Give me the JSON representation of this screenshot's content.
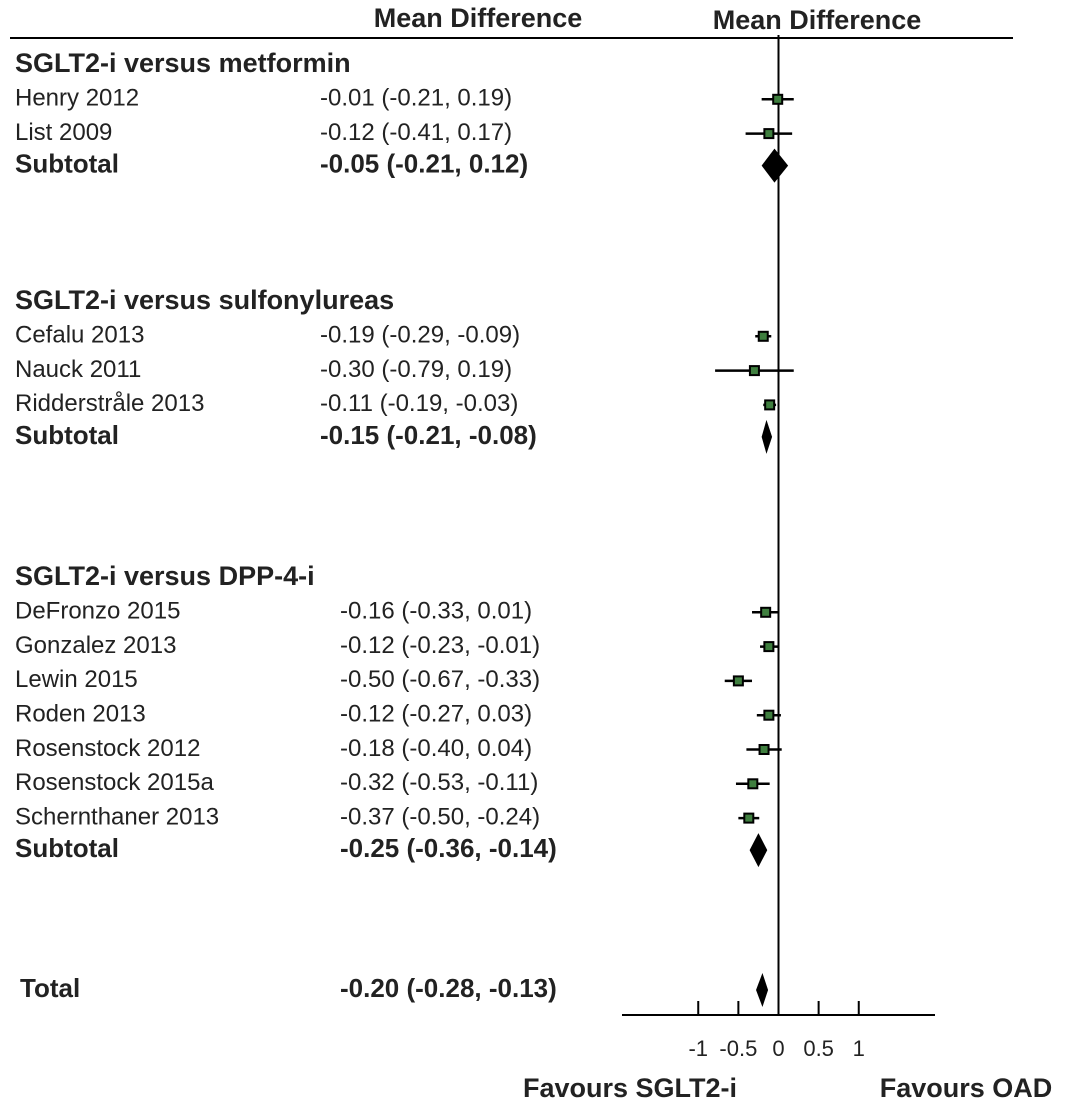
{
  "chart_data": {
    "type": "forest",
    "column_headers": [
      "Mean Difference",
      "Mean Difference"
    ],
    "groups": [
      {
        "title": "SGLT2-i versus metformin",
        "studies": [
          {
            "name": "Henry 2012",
            "mean": -0.01,
            "lower": -0.21,
            "upper": 0.19,
            "label": "-0.01 (-0.21, 0.19)"
          },
          {
            "name": "List 2009",
            "mean": -0.12,
            "lower": -0.41,
            "upper": 0.17,
            "label": "-0.12 (-0.41, 0.17)"
          }
        ],
        "subtotal": {
          "name": "Subtotal",
          "mean": -0.05,
          "lower": -0.21,
          "upper": 0.12,
          "label": "-0.05 (-0.21, 0.12)"
        }
      },
      {
        "title": "SGLT2-i versus sulfonylureas",
        "studies": [
          {
            "name": "Cefalu 2013",
            "mean": -0.19,
            "lower": -0.29,
            "upper": -0.09,
            "label": "-0.19 (-0.29, -0.09)"
          },
          {
            "name": "Nauck 2011",
            "mean": -0.3,
            "lower": -0.79,
            "upper": 0.19,
            "label": "-0.30 (-0.79, 0.19)"
          },
          {
            "name": "Ridderstråle 2013",
            "mean": -0.11,
            "lower": -0.19,
            "upper": -0.03,
            "label": "-0.11 (-0.19, -0.03)"
          }
        ],
        "subtotal": {
          "name": "Subtotal",
          "mean": -0.15,
          "lower": -0.21,
          "upper": -0.08,
          "label": "-0.15 (-0.21, -0.08)"
        }
      },
      {
        "title": "SGLT2-i versus DPP-4-i",
        "studies": [
          {
            "name": "DeFronzo 2015",
            "mean": -0.16,
            "lower": -0.33,
            "upper": 0.01,
            "label": "-0.16 (-0.33, 0.01)"
          },
          {
            "name": "Gonzalez 2013",
            "mean": -0.12,
            "lower": -0.23,
            "upper": -0.01,
            "label": "-0.12 (-0.23, -0.01)"
          },
          {
            "name": "Lewin 2015",
            "mean": -0.5,
            "lower": -0.67,
            "upper": -0.33,
            "label": "-0.50 (-0.67, -0.33)"
          },
          {
            "name": "Roden 2013",
            "mean": -0.12,
            "lower": -0.27,
            "upper": 0.03,
            "label": "-0.12 (-0.27, 0.03)"
          },
          {
            "name": "Rosenstock 2012",
            "mean": -0.18,
            "lower": -0.4,
            "upper": 0.04,
            "label": "-0.18 (-0.40, 0.04)"
          },
          {
            "name": "Rosenstock 2015a",
            "mean": -0.32,
            "lower": -0.53,
            "upper": -0.11,
            "label": "-0.32 (-0.53, -0.11)"
          },
          {
            "name": "Schernthaner 2013",
            "mean": -0.37,
            "lower": -0.5,
            "upper": -0.24,
            "label": "-0.37 (-0.50, -0.24)"
          }
        ],
        "subtotal": {
          "name": "Subtotal",
          "mean": -0.25,
          "lower": -0.36,
          "upper": -0.14,
          "label": "-0.25 (-0.36, -0.14)"
        }
      }
    ],
    "total": {
      "name": "Total",
      "mean": -0.2,
      "lower": -0.28,
      "upper": -0.13,
      "label": "-0.20 (-0.28, -0.13)"
    },
    "xlim": [
      -1.95,
      1.95
    ],
    "xticks": [
      -1,
      -0.5,
      0,
      0.5,
      1
    ],
    "x_axis_labels": [
      "Favours SGLT2-i",
      "Favours OAD"
    ],
    "marker_color": "#3f7f3f",
    "line_color": "#000000"
  }
}
